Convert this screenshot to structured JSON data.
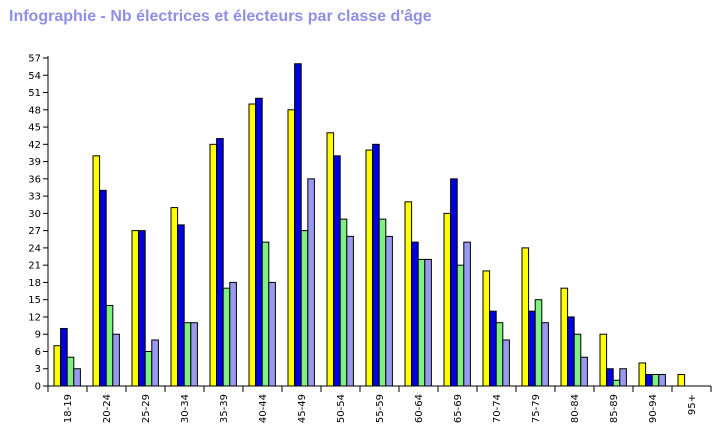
{
  "chart_data": {
    "type": "bar",
    "title": "Infographie - Nb électrices et électeurs par classe d'âge",
    "categories": [
      "18-19",
      "20-24",
      "25-29",
      "30-34",
      "35-39",
      "40-44",
      "45-49",
      "50-54",
      "55-59",
      "60-64",
      "65-69",
      "70-74",
      "75-79",
      "80-84",
      "85-89",
      "90-94",
      "95+"
    ],
    "series": [
      {
        "color": "#ffff00",
        "values": [
          7,
          40,
          27,
          31,
          42,
          49,
          48,
          44,
          41,
          32,
          30,
          20,
          24,
          17,
          9,
          4,
          2
        ]
      },
      {
        "color": "#0000e0",
        "values": [
          10,
          34,
          27,
          28,
          43,
          50,
          56,
          40,
          42,
          25,
          36,
          13,
          13,
          12,
          3,
          2,
          0
        ]
      },
      {
        "color": "#80f080",
        "values": [
          5,
          14,
          6,
          11,
          17,
          25,
          27,
          29,
          29,
          22,
          21,
          11,
          15,
          9,
          1,
          2,
          0
        ]
      },
      {
        "color": "#9999f0",
        "values": [
          3,
          9,
          8,
          11,
          18,
          18,
          36,
          26,
          26,
          22,
          25,
          8,
          11,
          5,
          3,
          2,
          0
        ]
      }
    ],
    "y_ticks": [
      "0",
      "3",
      "6",
      "9",
      "12",
      "15",
      "18",
      "21",
      "24",
      "27",
      "30",
      "33",
      "36",
      "39",
      "42",
      "45",
      "48",
      "51",
      "54",
      "57"
    ],
    "ylim": [
      0,
      57
    ],
    "xlabel": "",
    "ylabel": "",
    "grid": false,
    "legend": "none"
  }
}
